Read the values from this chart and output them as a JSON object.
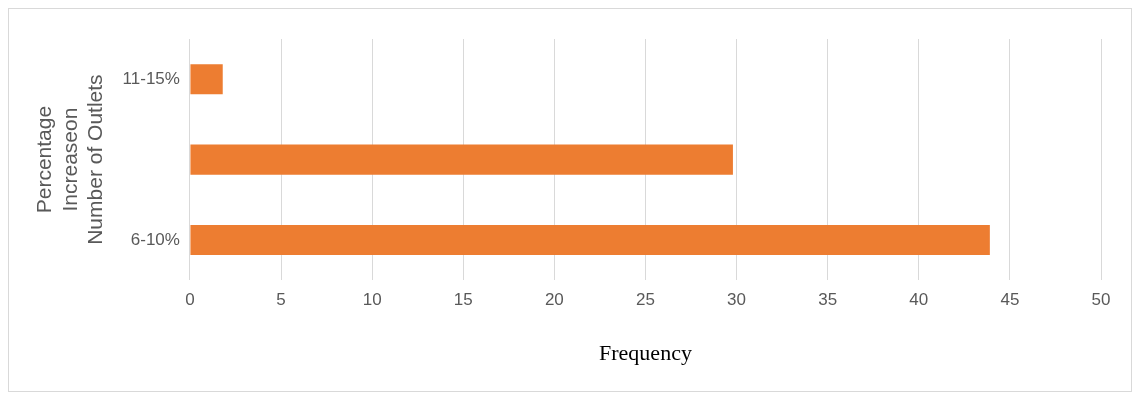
{
  "chart_data": {
    "type": "bar",
    "orientation": "horizontal",
    "xlabel": "Frequency",
    "ylabel": "Percentage\nIncreaseon\nNumber of Outlets",
    "categories": [
      "11-15%",
      null,
      "6-10%"
    ],
    "values": [
      1.8,
      29.8,
      43.9
    ],
    "color": "#ed7d31",
    "xlim": [
      0,
      50
    ],
    "xticks": [
      0,
      5,
      10,
      15,
      20,
      25,
      30,
      35,
      40,
      45,
      50
    ],
    "grid": "x",
    "legend": false
  }
}
